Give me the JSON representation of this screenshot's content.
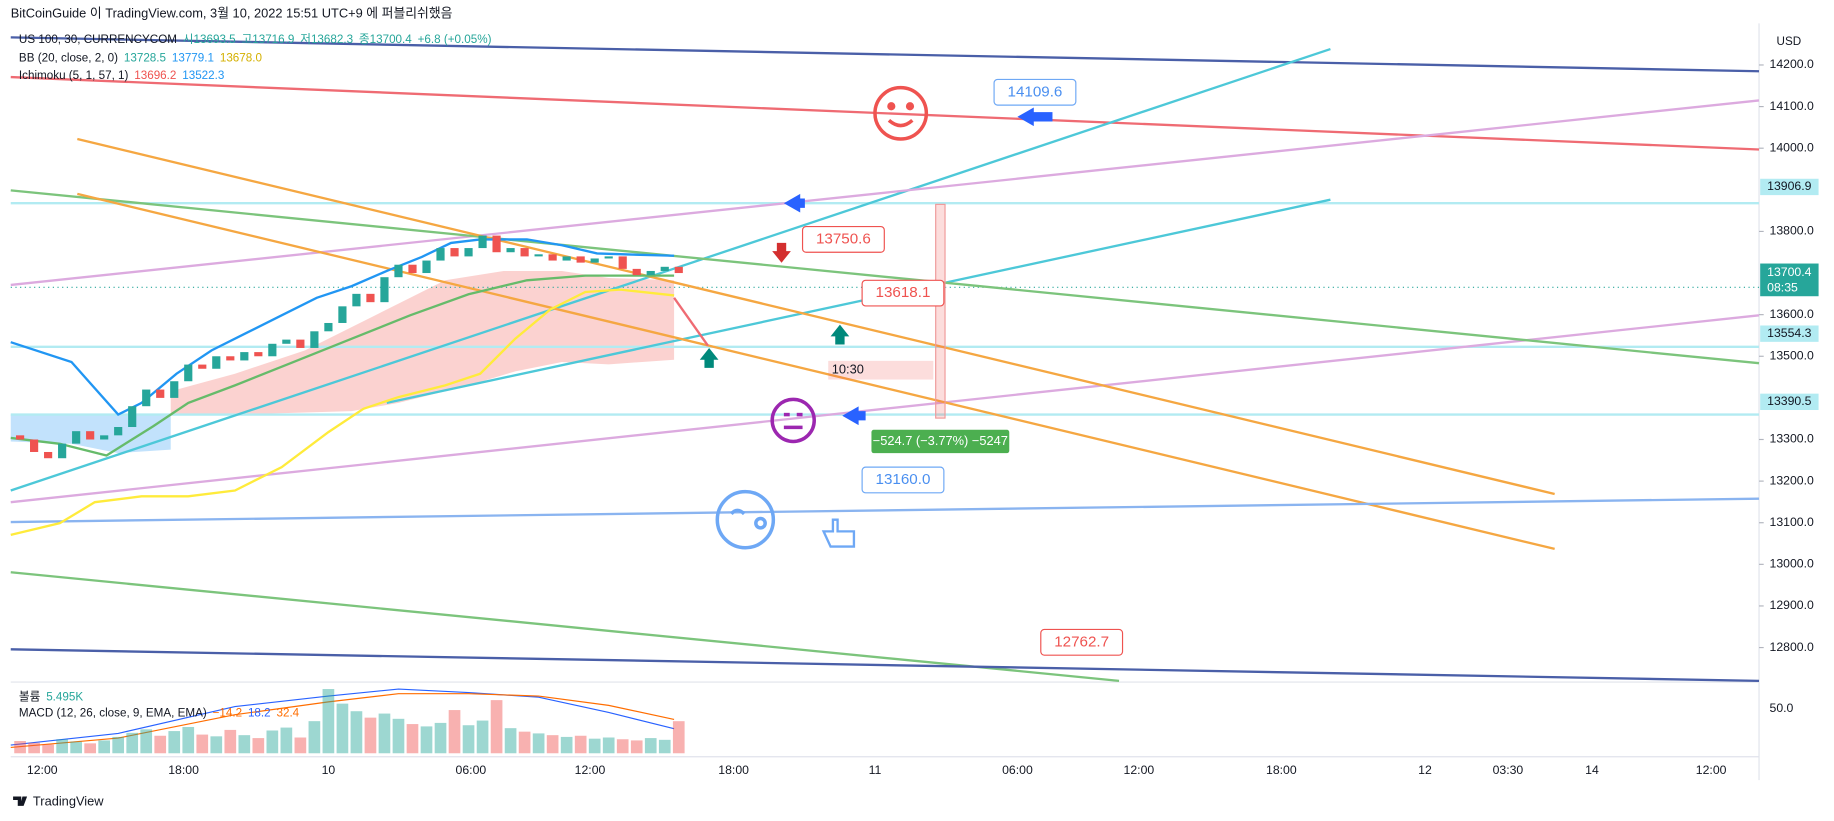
{
  "header": {
    "title": "BitCoinGuide 이 TradingView.com, 3월 10, 2022 15:51 UTC+9 에 퍼블리쉬했음"
  },
  "legend": {
    "symbol": [
      "US 100, 30, CURRENCYCOM",
      "시13693.5",
      "고13716.9",
      "저13682.3",
      "종13700.4",
      "+6.8 (+0.05%)"
    ],
    "bb": [
      "BB (20, close, 2, 0)",
      "13728.5",
      "13779.1",
      "13678.0"
    ],
    "ichimoku": [
      "Ichimoku (5, 1, 57, 1)",
      "13696.2",
      "13522.3"
    ],
    "volume": [
      "볼륨",
      "5.495K"
    ],
    "macd": [
      "MACD (12, 26, close, 9, EMA, EMA)",
      "−14.2",
      "18.2",
      "32.4"
    ]
  },
  "chart_data": {
    "type": "candlestick",
    "up_color": "#26a69a",
    "down_color": "#ef5350",
    "open": [
      13310,
      13300,
      13270,
      13255,
      13290,
      13320,
      13300,
      13310,
      13330,
      13380,
      13420,
      13400,
      13440,
      13480,
      13470,
      13500,
      13490,
      13510,
      13500,
      13530,
      13540,
      13520,
      13560,
      13580,
      13620,
      13650,
      13630,
      13690,
      13720,
      13700,
      13730,
      13760,
      13740,
      13760,
      13790,
      13750,
      13760,
      13740,
      13745,
      13730,
      13740,
      13725,
      13735,
      13740,
      13710,
      13695,
      13705,
      13715
    ],
    "close": [
      13300,
      13270,
      13255,
      13290,
      13320,
      13300,
      13310,
      13330,
      13380,
      13420,
      13400,
      13440,
      13480,
      13470,
      13500,
      13490,
      13510,
      13500,
      13530,
      13540,
      13520,
      13560,
      13580,
      13620,
      13650,
      13630,
      13690,
      13720,
      13700,
      13730,
      13760,
      13740,
      13760,
      13790,
      13750,
      13760,
      13740,
      13745,
      13730,
      13740,
      13725,
      13735,
      13740,
      13710,
      13695,
      13705,
      13715,
      13700
    ],
    "volume": [
      2.1,
      1.8,
      1.5,
      2.4,
      2.0,
      1.7,
      2.2,
      2.8,
      3.5,
      4.1,
      3.0,
      3.8,
      4.5,
      3.2,
      2.9,
      4.0,
      3.1,
      2.6,
      3.9,
      4.4,
      2.7,
      5.5,
      11.0,
      8.5,
      7.2,
      6.1,
      6.8,
      5.9,
      5.0,
      4.6,
      5.2,
      7.4,
      4.8,
      5.6,
      9.1,
      4.3,
      3.7,
      3.4,
      3.1,
      2.8,
      3.0,
      2.5,
      2.7,
      2.4,
      2.2,
      2.6,
      2.3,
      5.495
    ],
    "ylim": [
      12720,
      14300
    ],
    "yticks": [
      {
        "value": 14200,
        "label": "14200.0"
      },
      {
        "value": 14100,
        "label": "14100.0"
      },
      {
        "value": 14000,
        "label": "14000.0"
      },
      {
        "value": 13800,
        "label": "13800.0"
      },
      {
        "value": 13600,
        "label": "13600.0"
      },
      {
        "value": 13500,
        "label": "13500.0"
      },
      {
        "value": 13300,
        "label": "13300.0"
      },
      {
        "value": 13200,
        "label": "13200.0"
      },
      {
        "value": 13100,
        "label": "13100.0"
      },
      {
        "value": 13000,
        "label": "13000.0"
      },
      {
        "value": 12900,
        "label": "12900.0"
      },
      {
        "value": 12800,
        "label": "12800.0"
      }
    ],
    "currency": "USD",
    "badges": [
      {
        "value": 13906.9,
        "color": "#b2ebf2"
      },
      {
        "value": 13554.3,
        "color": "#b2ebf2"
      },
      {
        "value": 13390.5,
        "color": "#b2ebf2"
      }
    ],
    "last": {
      "value": 13700.4,
      "countdown": "08:35",
      "color": "#26a69a"
    },
    "volume_tick": "50.0",
    "time_labels": [
      "12:00",
      "18:00",
      "10",
      "06:00",
      "12:00",
      "18:00",
      "11",
      "06:00",
      "12:00",
      "18:00",
      "12",
      "03:30",
      "14",
      "12:00"
    ]
  },
  "drawings": {
    "labels": [
      "14109.6",
      "13750.6",
      "13618.1",
      "13160.0",
      "12762.7"
    ],
    "time_box": "10:30",
    "measure": "−524.7 (−3.77%) −5247"
  },
  "footer": {
    "brand": "TradingView"
  }
}
